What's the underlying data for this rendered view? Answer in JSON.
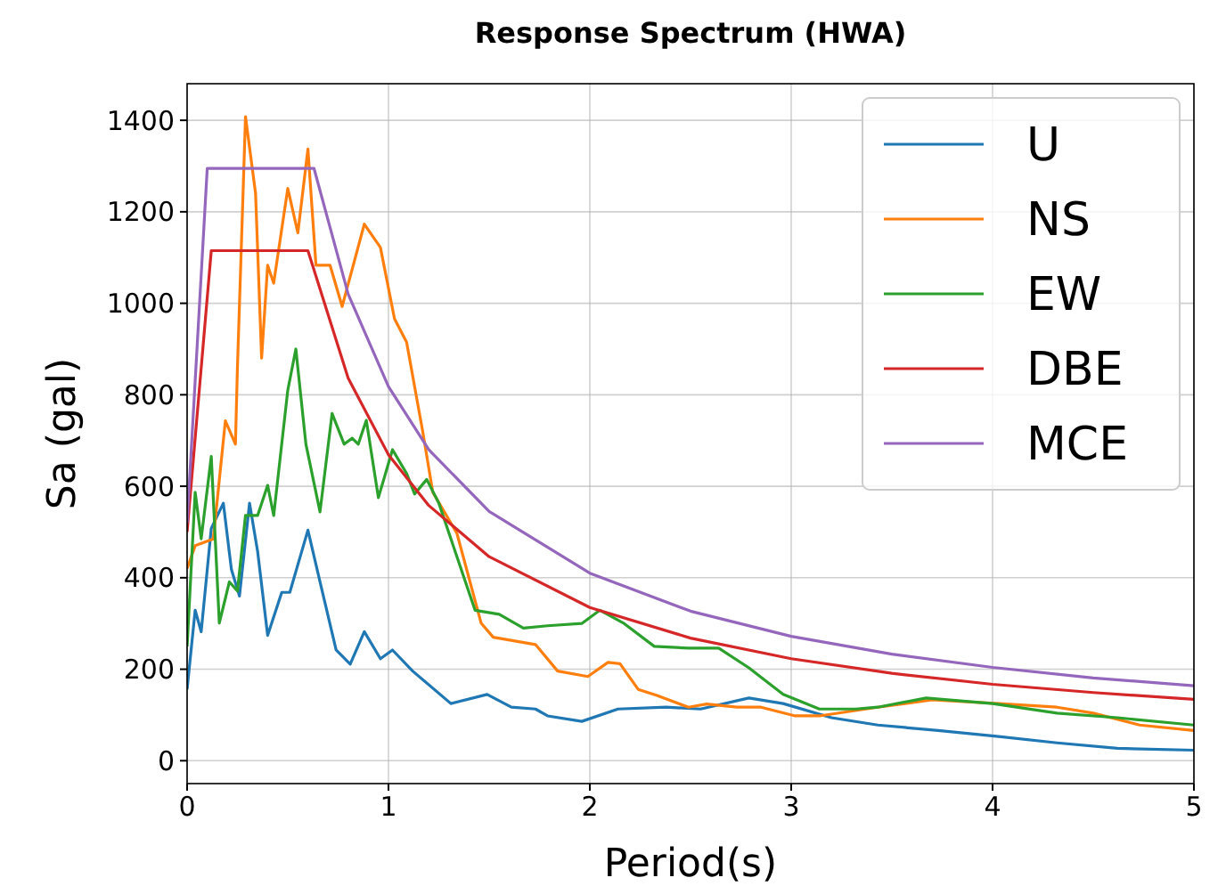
{
  "chart_data": {
    "type": "line",
    "title": "Response Spectrum (HWA)",
    "xlabel": "Period(s)",
    "ylabel": "Sa (gal)",
    "xlim": [
      0,
      5
    ],
    "xticks": [
      0,
      1,
      2,
      3,
      4,
      5
    ],
    "ylim": [
      -50,
      1480
    ],
    "yticks": [
      0,
      200,
      400,
      600,
      800,
      1000,
      1200,
      1400
    ],
    "grid": true,
    "legend": "top right",
    "line_style": "solid",
    "marker": "none",
    "series": [
      {
        "name": "U",
        "color": "#1f77b4",
        "x": [
          0,
          0.04,
          0.07,
          0.12,
          0.18,
          0.22,
          0.26,
          0.31,
          0.35,
          0.4,
          0.47,
          0.51,
          0.6,
          0.66,
          0.74,
          0.81,
          0.88,
          0.96,
          1.02,
          1.12,
          1.31,
          1.49,
          1.61,
          1.73,
          1.79,
          1.96,
          2.14,
          2.38,
          2.55,
          2.79,
          2.96,
          3.2,
          3.43,
          3.73,
          4.03,
          4.32,
          4.62,
          5
        ],
        "values": [
          156,
          329,
          282,
          508,
          563,
          418,
          360,
          563,
          458,
          274,
          368,
          368,
          504,
          391,
          242,
          211,
          282,
          223,
          242,
          196,
          125,
          145,
          117,
          113,
          98,
          86,
          113,
          117,
          113,
          137,
          125,
          94,
          78,
          66,
          53,
          39,
          27,
          23
        ]
      },
      {
        "name": "NS",
        "color": "#ff7f0e",
        "x": [
          0,
          0.04,
          0.13,
          0.19,
          0.24,
          0.25,
          0.29,
          0.34,
          0.37,
          0.4,
          0.43,
          0.5,
          0.55,
          0.6,
          0.64,
          0.71,
          0.77,
          0.88,
          0.96,
          1.03,
          1.09,
          1.17,
          1.22,
          1.34,
          1.46,
          1.52,
          1.73,
          1.84,
          1.99,
          2.09,
          2.15,
          2.24,
          2.33,
          2.49,
          2.58,
          2.73,
          2.85,
          3.02,
          3.14,
          3.43,
          3.7,
          4.03,
          4.32,
          4.5,
          4.73,
          5
        ],
        "values": [
          420,
          470,
          485,
          743,
          692,
          860,
          1408,
          1240,
          880,
          1083,
          1044,
          1251,
          1154,
          1337,
          1083,
          1083,
          993,
          1173,
          1122,
          966,
          915,
          720,
          587,
          497,
          301,
          270,
          254,
          196,
          184,
          215,
          212,
          156,
          143,
          117,
          124,
          117,
          117,
          98,
          98,
          117,
          133,
          125,
          117,
          104,
          78,
          66
        ]
      },
      {
        "name": "EW",
        "color": "#2ca02c",
        "x": [
          0,
          0.04,
          0.07,
          0.12,
          0.16,
          0.21,
          0.25,
          0.29,
          0.35,
          0.4,
          0.43,
          0.5,
          0.54,
          0.59,
          0.66,
          0.72,
          0.78,
          0.82,
          0.85,
          0.89,
          0.95,
          1.02,
          1.09,
          1.13,
          1.19,
          1.25,
          1.34,
          1.43,
          1.55,
          1.67,
          1.79,
          1.96,
          2.05,
          2.17,
          2.32,
          2.49,
          2.64,
          2.79,
          2.96,
          3.14,
          3.32,
          3.43,
          3.67,
          4.0,
          4.32,
          4.62,
          5
        ],
        "values": [
          250,
          587,
          485,
          665,
          301,
          391,
          371,
          536,
          536,
          602,
          536,
          810,
          900,
          692,
          544,
          759,
          692,
          705,
          692,
          744,
          575,
          680,
          628,
          583,
          615,
          563,
          446,
          329,
          320,
          290,
          295,
          300,
          329,
          300,
          250,
          246,
          246,
          203,
          145,
          113,
          113,
          117,
          137,
          125,
          104,
          94,
          78
        ]
      },
      {
        "name": "DBE",
        "color": "#d62728",
        "x": [
          0,
          0.12,
          0.6,
          0.8,
          1,
          1.2,
          1.5,
          2,
          2.5,
          3,
          3.5,
          4,
          4.5,
          5
        ],
        "values": [
          500,
          1115,
          1115,
          836,
          669,
          558,
          446,
          335,
          268,
          223,
          191,
          167,
          149,
          134
        ]
      },
      {
        "name": "MCE",
        "color": "#9467bd",
        "x": [
          0,
          0.1,
          0.63,
          0.8,
          1,
          1.2,
          1.5,
          2,
          2.5,
          3,
          3.5,
          4,
          4.5,
          5
        ],
        "values": [
          520,
          1295,
          1295,
          1020,
          818,
          680,
          545,
          410,
          327,
          272,
          233,
          204,
          181,
          164
        ]
      }
    ]
  }
}
